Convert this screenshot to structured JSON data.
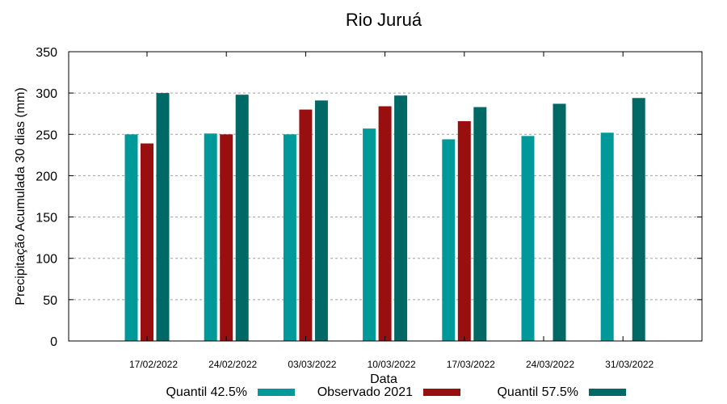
{
  "chart_data": {
    "type": "bar",
    "title": "Rio Juruá",
    "xlabel": "Data",
    "ylabel": "Precipitação Acumulada 30 dias (mm)",
    "ylim": [
      0,
      350
    ],
    "yticks": [
      0,
      50,
      100,
      150,
      200,
      250,
      300,
      350
    ],
    "grid": true,
    "legend_position": "bottom",
    "categories": [
      "17/02/2022",
      "24/02/2022",
      "03/03/2022",
      "10/03/2022",
      "17/03/2022",
      "24/03/2022",
      "31/03/2022"
    ],
    "series": [
      {
        "name": "Quantil 42.5%",
        "color": "#009999",
        "values": [
          250,
          251,
          250,
          257,
          244,
          248,
          252
        ]
      },
      {
        "name": "Observado 2021",
        "color": "#990f0f",
        "values": [
          239,
          250,
          280,
          284,
          266,
          null,
          null
        ]
      },
      {
        "name": "Quantil 57.5%",
        "color": "#006865",
        "values": [
          300,
          298,
          291,
          297,
          283,
          287,
          294
        ]
      }
    ]
  }
}
